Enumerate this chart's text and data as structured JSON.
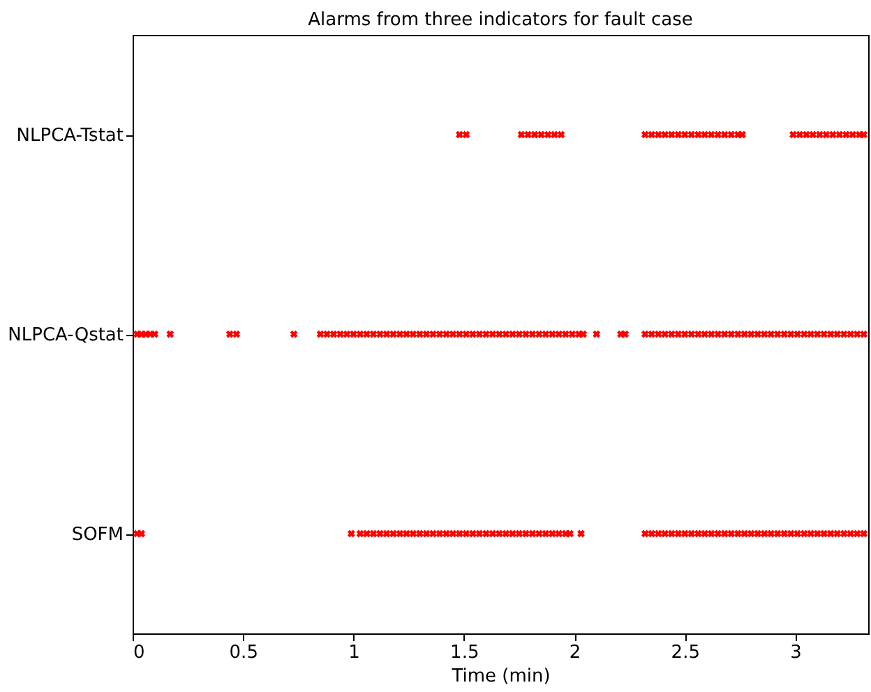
{
  "chart_data": {
    "type": "scatter",
    "orientation": "horizontal",
    "title": "Alarms from three indicators for fault case",
    "xlabel": "Time (min)",
    "xlim": [
      0,
      3.33
    ],
    "xticks": [
      0,
      0.5,
      1,
      1.5,
      2,
      2.5,
      3
    ],
    "categories": [
      "NLPCA-Tstat",
      "NLPCA-Qstat",
      "SOFM"
    ],
    "marker": "cross",
    "legend": false,
    "grid": false,
    "series": [
      {
        "color": "#ff0000",
        "values": [
          1.48,
          1.51,
          1.76,
          1.79,
          1.82,
          1.85,
          1.88,
          1.91,
          1.94,
          2.32,
          2.35,
          2.38,
          2.41,
          2.44,
          2.47,
          2.5,
          2.53,
          2.56,
          2.59,
          2.62,
          2.65,
          2.68,
          2.71,
          2.74,
          2.76,
          2.99,
          3.02,
          3.05,
          3.08,
          3.11,
          3.14,
          3.17,
          3.2,
          3.23,
          3.26,
          3.29,
          3.31
        ],
        "x": [
          "NLPCA-Tstat",
          "NLPCA-Tstat",
          "NLPCA-Tstat",
          "NLPCA-Tstat",
          "NLPCA-Tstat",
          "NLPCA-Tstat",
          "NLPCA-Tstat",
          "NLPCA-Tstat",
          "NLPCA-Tstat",
          "NLPCA-Tstat",
          "NLPCA-Tstat",
          "NLPCA-Tstat",
          "NLPCA-Tstat",
          "NLPCA-Tstat",
          "NLPCA-Tstat",
          "NLPCA-Tstat",
          "NLPCA-Tstat",
          "NLPCA-Tstat",
          "NLPCA-Tstat",
          "NLPCA-Tstat",
          "NLPCA-Tstat",
          "NLPCA-Tstat",
          "NLPCA-Tstat",
          "NLPCA-Tstat",
          "NLPCA-Tstat",
          "NLPCA-Tstat",
          "NLPCA-Tstat",
          "NLPCA-Tstat",
          "NLPCA-Tstat",
          "NLPCA-Tstat",
          "NLPCA-Tstat",
          "NLPCA-Tstat",
          "NLPCA-Tstat",
          "NLPCA-Tstat",
          "NLPCA-Tstat",
          "NLPCA-Tstat",
          "NLPCA-Tstat"
        ]
      },
      {
        "color": "#ff0000",
        "values": [
          0.02,
          0.04,
          0.06,
          0.08,
          0.1,
          0.17,
          0.44,
          0.47,
          0.73,
          0.85,
          0.88,
          0.91,
          0.94,
          0.97,
          1.0,
          1.03,
          1.06,
          1.09,
          1.12,
          1.15,
          1.18,
          1.21,
          1.24,
          1.27,
          1.3,
          1.33,
          1.36,
          1.39,
          1.42,
          1.45,
          1.48,
          1.51,
          1.54,
          1.57,
          1.6,
          1.63,
          1.66,
          1.69,
          1.72,
          1.75,
          1.78,
          1.81,
          1.84,
          1.87,
          1.9,
          1.93,
          1.96,
          1.99,
          2.02,
          2.04,
          2.1,
          2.21,
          2.23,
          2.32,
          2.35,
          2.38,
          2.41,
          2.44,
          2.47,
          2.5,
          2.53,
          2.56,
          2.59,
          2.62,
          2.65,
          2.68,
          2.71,
          2.74,
          2.77,
          2.8,
          2.83,
          2.86,
          2.89,
          2.92,
          2.95,
          2.98,
          3.01,
          3.04,
          3.07,
          3.1,
          3.13,
          3.16,
          3.19,
          3.22,
          3.25,
          3.28,
          3.31
        ],
        "x": [
          "NLPCA-Qstat",
          "NLPCA-Qstat",
          "NLPCA-Qstat",
          "NLPCA-Qstat",
          "NLPCA-Qstat",
          "NLPCA-Qstat",
          "NLPCA-Qstat",
          "NLPCA-Qstat",
          "NLPCA-Qstat",
          "NLPCA-Qstat",
          "NLPCA-Qstat",
          "NLPCA-Qstat",
          "NLPCA-Qstat",
          "NLPCA-Qstat",
          "NLPCA-Qstat",
          "NLPCA-Qstat",
          "NLPCA-Qstat",
          "NLPCA-Qstat",
          "NLPCA-Qstat",
          "NLPCA-Qstat",
          "NLPCA-Qstat",
          "NLPCA-Qstat",
          "NLPCA-Qstat",
          "NLPCA-Qstat",
          "NLPCA-Qstat",
          "NLPCA-Qstat",
          "NLPCA-Qstat",
          "NLPCA-Qstat",
          "NLPCA-Qstat",
          "NLPCA-Qstat",
          "NLPCA-Qstat",
          "NLPCA-Qstat",
          "NLPCA-Qstat",
          "NLPCA-Qstat",
          "NLPCA-Qstat",
          "NLPCA-Qstat",
          "NLPCA-Qstat",
          "NLPCA-Qstat",
          "NLPCA-Qstat",
          "NLPCA-Qstat",
          "NLPCA-Qstat",
          "NLPCA-Qstat",
          "NLPCA-Qstat",
          "NLPCA-Qstat",
          "NLPCA-Qstat",
          "NLPCA-Qstat",
          "NLPCA-Qstat",
          "NLPCA-Qstat",
          "NLPCA-Qstat",
          "NLPCA-Qstat",
          "NLPCA-Qstat",
          "NLPCA-Qstat",
          "NLPCA-Qstat",
          "NLPCA-Qstat",
          "NLPCA-Qstat",
          "NLPCA-Qstat",
          "NLPCA-Qstat",
          "NLPCA-Qstat",
          "NLPCA-Qstat",
          "NLPCA-Qstat",
          "NLPCA-Qstat",
          "NLPCA-Qstat",
          "NLPCA-Qstat",
          "NLPCA-Qstat",
          "NLPCA-Qstat",
          "NLPCA-Qstat",
          "NLPCA-Qstat",
          "NLPCA-Qstat",
          "NLPCA-Qstat",
          "NLPCA-Qstat",
          "NLPCA-Qstat",
          "NLPCA-Qstat",
          "NLPCA-Qstat",
          "NLPCA-Qstat",
          "NLPCA-Qstat",
          "NLPCA-Qstat",
          "NLPCA-Qstat",
          "NLPCA-Qstat",
          "NLPCA-Qstat",
          "NLPCA-Qstat",
          "NLPCA-Qstat",
          "NLPCA-Qstat",
          "NLPCA-Qstat",
          "NLPCA-Qstat",
          "NLPCA-Qstat",
          "NLPCA-Qstat",
          "NLPCA-Qstat"
        ]
      },
      {
        "color": "#ff0000",
        "values": [
          0.02,
          0.04,
          0.99,
          1.03,
          1.06,
          1.09,
          1.12,
          1.15,
          1.18,
          1.21,
          1.24,
          1.27,
          1.3,
          1.33,
          1.36,
          1.39,
          1.42,
          1.45,
          1.48,
          1.51,
          1.54,
          1.57,
          1.6,
          1.63,
          1.66,
          1.69,
          1.72,
          1.75,
          1.78,
          1.81,
          1.84,
          1.87,
          1.9,
          1.93,
          1.96,
          1.98,
          2.03,
          2.32,
          2.35,
          2.38,
          2.41,
          2.44,
          2.47,
          2.5,
          2.53,
          2.56,
          2.59,
          2.62,
          2.65,
          2.68,
          2.71,
          2.74,
          2.77,
          2.8,
          2.83,
          2.86,
          2.89,
          2.92,
          2.95,
          2.98,
          3.01,
          3.04,
          3.07,
          3.1,
          3.13,
          3.16,
          3.19,
          3.22,
          3.25,
          3.28,
          3.31
        ],
        "x": [
          "SOFM",
          "SOFM",
          "SOFM",
          "SOFM",
          "SOFM",
          "SOFM",
          "SOFM",
          "SOFM",
          "SOFM",
          "SOFM",
          "SOFM",
          "SOFM",
          "SOFM",
          "SOFM",
          "SOFM",
          "SOFM",
          "SOFM",
          "SOFM",
          "SOFM",
          "SOFM",
          "SOFM",
          "SOFM",
          "SOFM",
          "SOFM",
          "SOFM",
          "SOFM",
          "SOFM",
          "SOFM",
          "SOFM",
          "SOFM",
          "SOFM",
          "SOFM",
          "SOFM",
          "SOFM",
          "SOFM",
          "SOFM",
          "SOFM",
          "SOFM",
          "SOFM",
          "SOFM",
          "SOFM",
          "SOFM",
          "SOFM",
          "SOFM",
          "SOFM",
          "SOFM",
          "SOFM",
          "SOFM",
          "SOFM",
          "SOFM",
          "SOFM",
          "SOFM",
          "SOFM",
          "SOFM",
          "SOFM",
          "SOFM",
          "SOFM",
          "SOFM",
          "SOFM",
          "SOFM",
          "SOFM",
          "SOFM",
          "SOFM",
          "SOFM",
          "SOFM",
          "SOFM",
          "SOFM",
          "SOFM",
          "SOFM",
          "SOFM",
          "SOFM"
        ]
      }
    ]
  }
}
